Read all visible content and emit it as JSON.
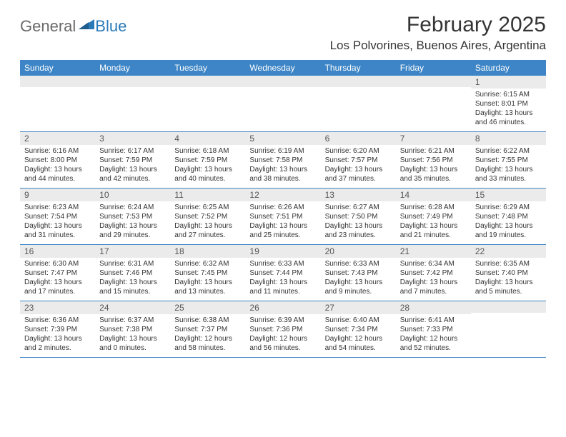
{
  "logo": {
    "text1": "General",
    "text2": "Blue"
  },
  "title": "February 2025",
  "location": "Los Polvorines, Buenos Aires, Argentina",
  "colors": {
    "header_bar": "#3d85c6",
    "daynum_bg": "#ebebeb",
    "rule": "#3d85c6",
    "logo_gray": "#6a6a6a",
    "logo_blue": "#2a7ab8"
  },
  "weekdays": [
    "Sunday",
    "Monday",
    "Tuesday",
    "Wednesday",
    "Thursday",
    "Friday",
    "Saturday"
  ],
  "weeks": [
    [
      {
        "n": "",
        "sunrise": "",
        "sunset": "",
        "daylight": ""
      },
      {
        "n": "",
        "sunrise": "",
        "sunset": "",
        "daylight": ""
      },
      {
        "n": "",
        "sunrise": "",
        "sunset": "",
        "daylight": ""
      },
      {
        "n": "",
        "sunrise": "",
        "sunset": "",
        "daylight": ""
      },
      {
        "n": "",
        "sunrise": "",
        "sunset": "",
        "daylight": ""
      },
      {
        "n": "",
        "sunrise": "",
        "sunset": "",
        "daylight": ""
      },
      {
        "n": "1",
        "sunrise": "Sunrise: 6:15 AM",
        "sunset": "Sunset: 8:01 PM",
        "daylight": "Daylight: 13 hours and 46 minutes."
      }
    ],
    [
      {
        "n": "2",
        "sunrise": "Sunrise: 6:16 AM",
        "sunset": "Sunset: 8:00 PM",
        "daylight": "Daylight: 13 hours and 44 minutes."
      },
      {
        "n": "3",
        "sunrise": "Sunrise: 6:17 AM",
        "sunset": "Sunset: 7:59 PM",
        "daylight": "Daylight: 13 hours and 42 minutes."
      },
      {
        "n": "4",
        "sunrise": "Sunrise: 6:18 AM",
        "sunset": "Sunset: 7:59 PM",
        "daylight": "Daylight: 13 hours and 40 minutes."
      },
      {
        "n": "5",
        "sunrise": "Sunrise: 6:19 AM",
        "sunset": "Sunset: 7:58 PM",
        "daylight": "Daylight: 13 hours and 38 minutes."
      },
      {
        "n": "6",
        "sunrise": "Sunrise: 6:20 AM",
        "sunset": "Sunset: 7:57 PM",
        "daylight": "Daylight: 13 hours and 37 minutes."
      },
      {
        "n": "7",
        "sunrise": "Sunrise: 6:21 AM",
        "sunset": "Sunset: 7:56 PM",
        "daylight": "Daylight: 13 hours and 35 minutes."
      },
      {
        "n": "8",
        "sunrise": "Sunrise: 6:22 AM",
        "sunset": "Sunset: 7:55 PM",
        "daylight": "Daylight: 13 hours and 33 minutes."
      }
    ],
    [
      {
        "n": "9",
        "sunrise": "Sunrise: 6:23 AM",
        "sunset": "Sunset: 7:54 PM",
        "daylight": "Daylight: 13 hours and 31 minutes."
      },
      {
        "n": "10",
        "sunrise": "Sunrise: 6:24 AM",
        "sunset": "Sunset: 7:53 PM",
        "daylight": "Daylight: 13 hours and 29 minutes."
      },
      {
        "n": "11",
        "sunrise": "Sunrise: 6:25 AM",
        "sunset": "Sunset: 7:52 PM",
        "daylight": "Daylight: 13 hours and 27 minutes."
      },
      {
        "n": "12",
        "sunrise": "Sunrise: 6:26 AM",
        "sunset": "Sunset: 7:51 PM",
        "daylight": "Daylight: 13 hours and 25 minutes."
      },
      {
        "n": "13",
        "sunrise": "Sunrise: 6:27 AM",
        "sunset": "Sunset: 7:50 PM",
        "daylight": "Daylight: 13 hours and 23 minutes."
      },
      {
        "n": "14",
        "sunrise": "Sunrise: 6:28 AM",
        "sunset": "Sunset: 7:49 PM",
        "daylight": "Daylight: 13 hours and 21 minutes."
      },
      {
        "n": "15",
        "sunrise": "Sunrise: 6:29 AM",
        "sunset": "Sunset: 7:48 PM",
        "daylight": "Daylight: 13 hours and 19 minutes."
      }
    ],
    [
      {
        "n": "16",
        "sunrise": "Sunrise: 6:30 AM",
        "sunset": "Sunset: 7:47 PM",
        "daylight": "Daylight: 13 hours and 17 minutes."
      },
      {
        "n": "17",
        "sunrise": "Sunrise: 6:31 AM",
        "sunset": "Sunset: 7:46 PM",
        "daylight": "Daylight: 13 hours and 15 minutes."
      },
      {
        "n": "18",
        "sunrise": "Sunrise: 6:32 AM",
        "sunset": "Sunset: 7:45 PM",
        "daylight": "Daylight: 13 hours and 13 minutes."
      },
      {
        "n": "19",
        "sunrise": "Sunrise: 6:33 AM",
        "sunset": "Sunset: 7:44 PM",
        "daylight": "Daylight: 13 hours and 11 minutes."
      },
      {
        "n": "20",
        "sunrise": "Sunrise: 6:33 AM",
        "sunset": "Sunset: 7:43 PM",
        "daylight": "Daylight: 13 hours and 9 minutes."
      },
      {
        "n": "21",
        "sunrise": "Sunrise: 6:34 AM",
        "sunset": "Sunset: 7:42 PM",
        "daylight": "Daylight: 13 hours and 7 minutes."
      },
      {
        "n": "22",
        "sunrise": "Sunrise: 6:35 AM",
        "sunset": "Sunset: 7:40 PM",
        "daylight": "Daylight: 13 hours and 5 minutes."
      }
    ],
    [
      {
        "n": "23",
        "sunrise": "Sunrise: 6:36 AM",
        "sunset": "Sunset: 7:39 PM",
        "daylight": "Daylight: 13 hours and 2 minutes."
      },
      {
        "n": "24",
        "sunrise": "Sunrise: 6:37 AM",
        "sunset": "Sunset: 7:38 PM",
        "daylight": "Daylight: 13 hours and 0 minutes."
      },
      {
        "n": "25",
        "sunrise": "Sunrise: 6:38 AM",
        "sunset": "Sunset: 7:37 PM",
        "daylight": "Daylight: 12 hours and 58 minutes."
      },
      {
        "n": "26",
        "sunrise": "Sunrise: 6:39 AM",
        "sunset": "Sunset: 7:36 PM",
        "daylight": "Daylight: 12 hours and 56 minutes."
      },
      {
        "n": "27",
        "sunrise": "Sunrise: 6:40 AM",
        "sunset": "Sunset: 7:34 PM",
        "daylight": "Daylight: 12 hours and 54 minutes."
      },
      {
        "n": "28",
        "sunrise": "Sunrise: 6:41 AM",
        "sunset": "Sunset: 7:33 PM",
        "daylight": "Daylight: 12 hours and 52 minutes."
      },
      {
        "n": "",
        "sunrise": "",
        "sunset": "",
        "daylight": ""
      }
    ]
  ]
}
